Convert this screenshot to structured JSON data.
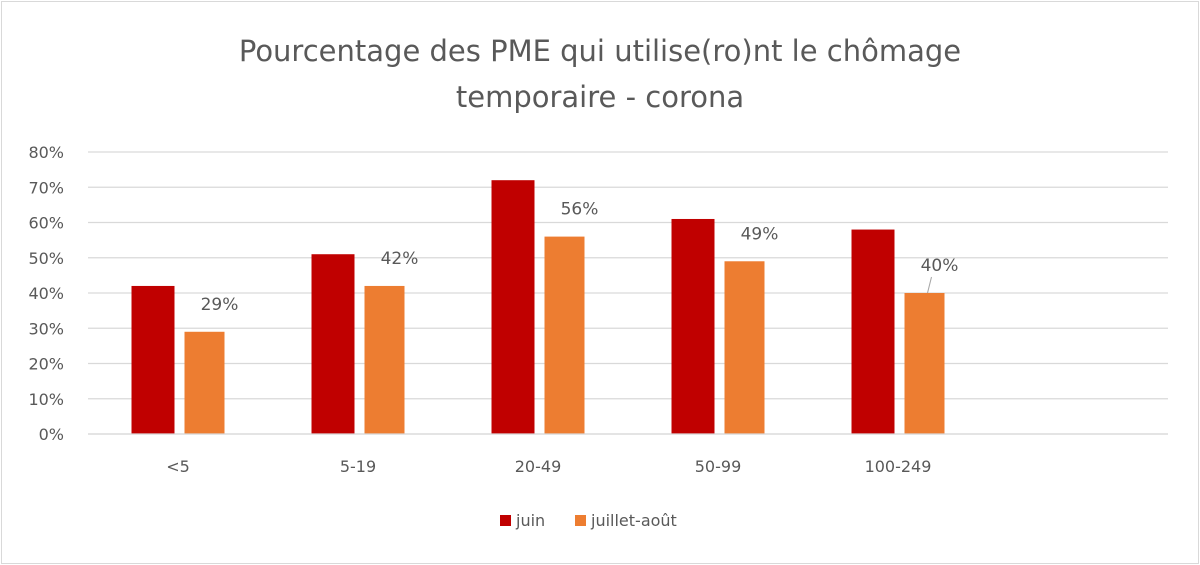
{
  "chart_data": {
    "type": "bar",
    "title_line1": "Pourcentage des PME qui utilise(ro)nt le chômage",
    "title_line2": "temporaire - corona",
    "categories": [
      "<5",
      "5-19",
      "20-49",
      "50-99",
      "100-249"
    ],
    "series": [
      {
        "name": "juin",
        "color": "#c00000",
        "values": [
          42,
          51,
          72,
          61,
          58
        ],
        "data_labels": false
      },
      {
        "name": "juillet-août",
        "color": "#ed7d31",
        "values": [
          29,
          42,
          56,
          49,
          40
        ],
        "data_labels": true
      }
    ],
    "value_suffix": "%",
    "ylim": [
      0,
      80
    ],
    "yticks": [
      "0%",
      "10%",
      "20%",
      "30%",
      "40%",
      "50%",
      "60%",
      "70%",
      "80%"
    ],
    "grid": true,
    "legend": "bottom",
    "xlabel": "",
    "ylabel": ""
  }
}
